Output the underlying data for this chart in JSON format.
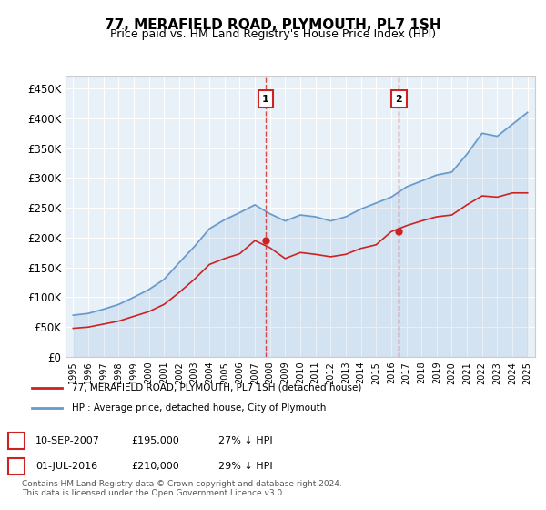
{
  "title": "77, MERAFIELD ROAD, PLYMOUTH, PL7 1SH",
  "subtitle": "Price paid vs. HM Land Registry's House Price Index (HPI)",
  "ylabel": "",
  "ylim": [
    0,
    470000
  ],
  "yticks": [
    0,
    50000,
    100000,
    150000,
    200000,
    250000,
    300000,
    350000,
    400000,
    450000
  ],
  "ytick_labels": [
    "£0",
    "£50K",
    "£100K",
    "£150K",
    "£200K",
    "£250K",
    "£300K",
    "£350K",
    "£400K",
    "£450K"
  ],
  "background_color": "#ffffff",
  "plot_bg_color": "#e8f0f8",
  "grid_color": "#ffffff",
  "hpi_color": "#6699cc",
  "price_color": "#cc2222",
  "marker1_date_idx": 12.75,
  "marker2_date_idx": 21.5,
  "marker1_label": "1",
  "marker2_label": "2",
  "marker1_price": 195000,
  "marker2_price": 210000,
  "legend_line1": "77, MERAFIELD ROAD, PLYMOUTH, PL7 1SH (detached house)",
  "legend_line2": "HPI: Average price, detached house, City of Plymouth",
  "table_row1": "1     10-SEP-2007          £195,000          27% ↓ HPI",
  "table_row2": "2     01-JUL-2016          £210,000          29% ↓ HPI",
  "footnote": "Contains HM Land Registry data © Crown copyright and database right 2024.\nThis data is licensed under the Open Government Licence v3.0.",
  "hpi_data": {
    "years": [
      1995,
      1996,
      1997,
      1998,
      1999,
      2000,
      2001,
      2002,
      2003,
      2004,
      2005,
      2006,
      2007,
      2008,
      2009,
      2010,
      2011,
      2012,
      2013,
      2014,
      2015,
      2016,
      2017,
      2018,
      2019,
      2020,
      2021,
      2022,
      2023,
      2024,
      2025
    ],
    "values": [
      70000,
      73000,
      80000,
      88000,
      100000,
      113000,
      130000,
      158000,
      185000,
      215000,
      230000,
      242000,
      255000,
      240000,
      228000,
      238000,
      235000,
      228000,
      235000,
      248000,
      258000,
      268000,
      285000,
      295000,
      305000,
      310000,
      340000,
      375000,
      370000,
      390000,
      410000
    ]
  },
  "price_data": {
    "years": [
      1995,
      1996,
      1997,
      1998,
      1999,
      2000,
      2001,
      2002,
      2003,
      2004,
      2005,
      2006,
      2007,
      2008,
      2009,
      2010,
      2011,
      2012,
      2013,
      2014,
      2015,
      2016,
      2017,
      2018,
      2019,
      2020,
      2021,
      2022,
      2023,
      2024,
      2025
    ],
    "values": [
      48000,
      50000,
      55000,
      60000,
      68000,
      76000,
      88000,
      108000,
      130000,
      155000,
      165000,
      173000,
      195000,
      183000,
      165000,
      175000,
      172000,
      168000,
      172000,
      182000,
      188000,
      210000,
      220000,
      228000,
      235000,
      238000,
      255000,
      270000,
      268000,
      275000,
      275000
    ]
  }
}
